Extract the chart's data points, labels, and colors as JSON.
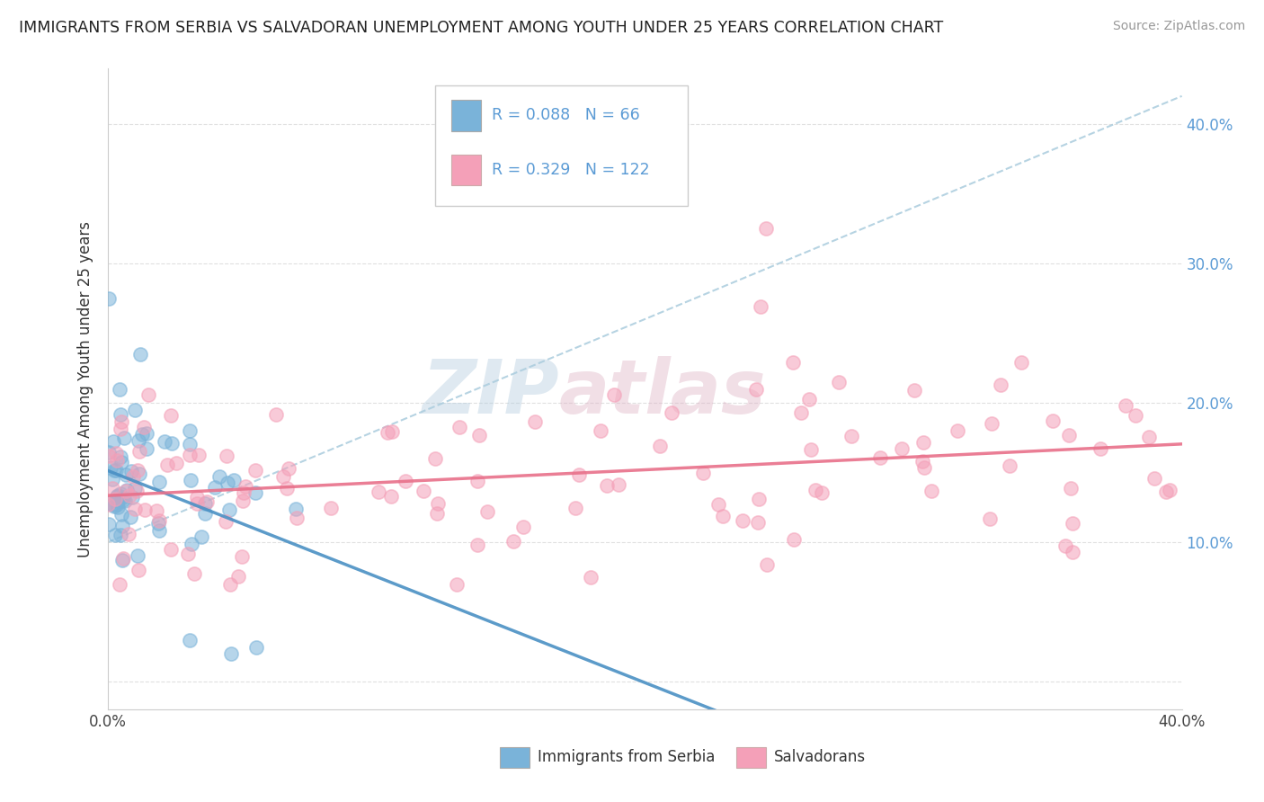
{
  "title": "IMMIGRANTS FROM SERBIA VS SALVADORAN UNEMPLOYMENT AMONG YOUTH UNDER 25 YEARS CORRELATION CHART",
  "source": "Source: ZipAtlas.com",
  "ylabel": "Unemployment Among Youth under 25 years",
  "serbia_R": 0.088,
  "serbia_N": 66,
  "salvadoran_R": 0.329,
  "salvadoran_N": 122,
  "serbia_color": "#7ab3d9",
  "salvadoran_color": "#f4a0b8",
  "background_color": "#ffffff",
  "watermark_color": "#c8d8e8",
  "watermark_color2": "#e8c8d0",
  "xlim": [
    0.0,
    0.4
  ],
  "ylim": [
    -0.02,
    0.44
  ],
  "right_ytick_color": "#5b9bd5",
  "grid_color": "#dddddd",
  "dashed_line_color": "#aaccdd"
}
